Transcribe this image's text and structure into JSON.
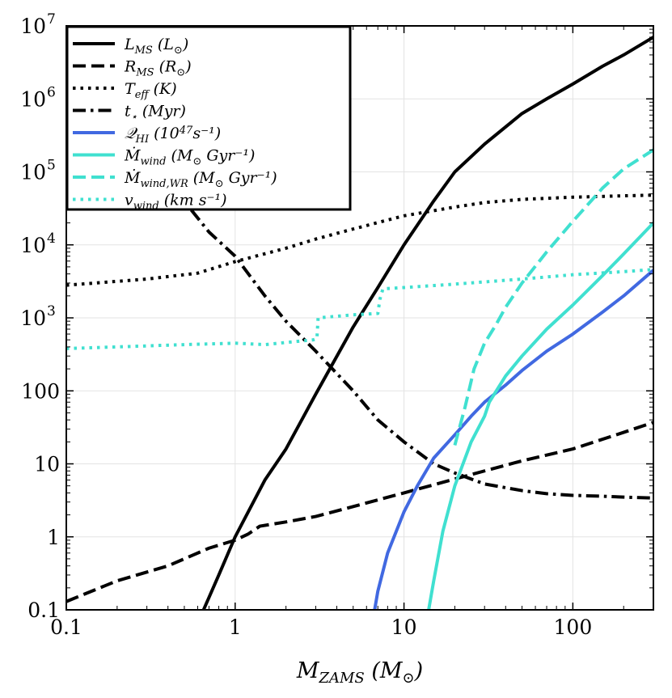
{
  "chart_data": {
    "type": "line",
    "x_scale": "log",
    "y_scale": "log",
    "xlim": [
      0.1,
      300
    ],
    "ylim": [
      0.1,
      10000000
    ],
    "xlabel": "M_ZAMS (M_⊙)",
    "grid": true,
    "legend_position": "top-left",
    "x_ticks": [
      {
        "value": 0.1,
        "label": "0.1"
      },
      {
        "value": 1,
        "label": "1"
      },
      {
        "value": 10,
        "label": "10"
      },
      {
        "value": 100,
        "label": "100"
      }
    ],
    "y_ticks": [
      {
        "value": 0.1,
        "label": "0.1",
        "sup": ""
      },
      {
        "value": 1,
        "label": "1",
        "sup": ""
      },
      {
        "value": 10,
        "label": "10",
        "sup": ""
      },
      {
        "value": 100,
        "label": "100",
        "sup": ""
      },
      {
        "value": 1000,
        "label": "10",
        "sup": "3"
      },
      {
        "value": 10000,
        "label": "10",
        "sup": "4"
      },
      {
        "value": 100000,
        "label": "10",
        "sup": "5"
      },
      {
        "value": 1000000,
        "label": "10",
        "sup": "6"
      },
      {
        "value": 10000000,
        "label": "10",
        "sup": "7"
      }
    ],
    "series": [
      {
        "name": "L_MS (L_⊙)",
        "color": "#000000",
        "style": "solid",
        "x": [
          0.65,
          0.8,
          1.0,
          1.5,
          2.0,
          3.0,
          5.0,
          7.0,
          10,
          15,
          20,
          30,
          50,
          70,
          100,
          150,
          200,
          300
        ],
        "y": [
          0.1,
          0.3,
          1.0,
          6,
          16,
          90,
          750,
          2600,
          10000,
          40000,
          100000,
          240000,
          630000,
          1000000,
          1600000,
          2800000,
          4000000,
          7000000
        ]
      },
      {
        "name": "R_MS (R_⊙)",
        "color": "#000000",
        "style": "dashed",
        "x": [
          0.1,
          0.2,
          0.4,
          0.7,
          1.0,
          1.2,
          1.4,
          2.0,
          3.0,
          5.0,
          10,
          20,
          30,
          50,
          100,
          200,
          300
        ],
        "y": [
          0.13,
          0.25,
          0.4,
          0.7,
          0.9,
          1.1,
          1.4,
          1.6,
          1.9,
          2.6,
          4.0,
          6.2,
          8.0,
          11,
          16,
          27,
          37
        ]
      },
      {
        "name": "T_eff (K)",
        "color": "#000000",
        "style": "dotted",
        "x": [
          0.1,
          0.3,
          0.6,
          1.0,
          2.0,
          3.0,
          5.0,
          10,
          20,
          30,
          50,
          100,
          200,
          300
        ],
        "y": [
          2800,
          3400,
          4100,
          5900,
          9000,
          12000,
          16500,
          25000,
          33000,
          38000,
          42000,
          45000,
          47000,
          48000
        ]
      },
      {
        "name": "t_⋆ (Myr)",
        "color": "#000000",
        "style": "dashdot",
        "x": [
          0.55,
          0.7,
          1.0,
          1.5,
          2.0,
          3.0,
          5.0,
          7.0,
          10,
          15,
          20,
          30,
          50,
          70,
          100,
          150,
          200,
          300
        ],
        "y": [
          30000,
          15000,
          7000,
          2000,
          900,
          350,
          100,
          40,
          20,
          10,
          7.5,
          5.3,
          4.3,
          3.9,
          3.7,
          3.6,
          3.5,
          3.4
        ]
      },
      {
        "name": "Q_HI (10^47 s^-1)",
        "color": "#4169e1",
        "style": "solid",
        "x": [
          6.7,
          7.0,
          8.0,
          10,
          12,
          15,
          20,
          25,
          30,
          40,
          50,
          70,
          100,
          150,
          200,
          300
        ],
        "y": [
          0.1,
          0.18,
          0.6,
          2.2,
          5,
          12,
          25,
          45,
          70,
          120,
          190,
          350,
          600,
          1200,
          2000,
          4500
        ]
      },
      {
        "name": "Ṁ_wind (M_⊙ Gyr^-1)",
        "color": "#40e0d0",
        "style": "solid",
        "x": [
          14,
          15,
          17,
          20,
          25,
          30,
          32,
          40,
          50,
          70,
          100,
          150,
          200,
          300
        ],
        "y": [
          0.1,
          0.25,
          1.2,
          5,
          20,
          45,
          70,
          160,
          300,
          700,
          1500,
          3800,
          7500,
          20000
        ]
      },
      {
        "name": "Ṁ_wind,WR (M_⊙ Gyr^-1)",
        "color": "#40e0d0",
        "style": "dashed",
        "x": [
          20,
          23,
          26,
          30,
          35,
          40,
          50,
          70,
          100,
          150,
          200,
          300
        ],
        "y": [
          18,
          60,
          200,
          450,
          800,
          1400,
          3000,
          8000,
          21000,
          60000,
          110000,
          200000
        ]
      },
      {
        "name": "v_wind (km s^-1)",
        "color": "#40e0d0",
        "style": "dotted",
        "x": [
          0.1,
          0.2,
          0.5,
          1.0,
          1.5,
          2.0,
          2.9,
          3.05,
          3.1,
          5.0,
          7.0,
          7.2,
          7.5,
          10,
          20,
          50,
          100,
          200,
          300
        ],
        "y": [
          380,
          400,
          430,
          450,
          430,
          460,
          500,
          520,
          1000,
          1100,
          1150,
          1800,
          2500,
          2600,
          2900,
          3400,
          3900,
          4300,
          4600
        ]
      }
    ]
  },
  "legend": {
    "entries": [
      {
        "main": "L",
        "sub": "MS",
        "unit": " (L",
        "unit_sub": "⊙",
        "unit_tail": ")"
      },
      {
        "main": "R",
        "sub": "MS",
        "unit": " (R",
        "unit_sub": "⊙",
        "unit_tail": ")"
      },
      {
        "main": "T",
        "sub": "eff",
        "unit": " (K)",
        "unit_sub": "",
        "unit_tail": ""
      },
      {
        "main": "t",
        "sub": "⋆",
        "unit": " (Myr)",
        "unit_sub": "",
        "unit_tail": ""
      },
      {
        "main": "𝒬",
        "sub": "HI",
        "unit": " (10",
        "unit_sub": "47",
        "unit_tail": "s⁻¹)"
      },
      {
        "main": "Ṁ",
        "sub": "wind",
        "unit": " (M",
        "unit_sub": "⊙",
        "unit_tail": " Gyr⁻¹)"
      },
      {
        "main": "Ṁ",
        "sub": "wind,WR",
        "unit": " (M",
        "unit_sub": "⊙",
        "unit_tail": " Gyr⁻¹)"
      },
      {
        "main": "v",
        "sub": "wind",
        "unit": " (km s⁻¹)",
        "unit_sub": "",
        "unit_tail": ""
      }
    ]
  },
  "xaxis_title": {
    "main": "M",
    "sub": "ZAMS",
    "unit": " (M",
    "unit_sub": "⊙",
    "unit_tail": ")"
  }
}
